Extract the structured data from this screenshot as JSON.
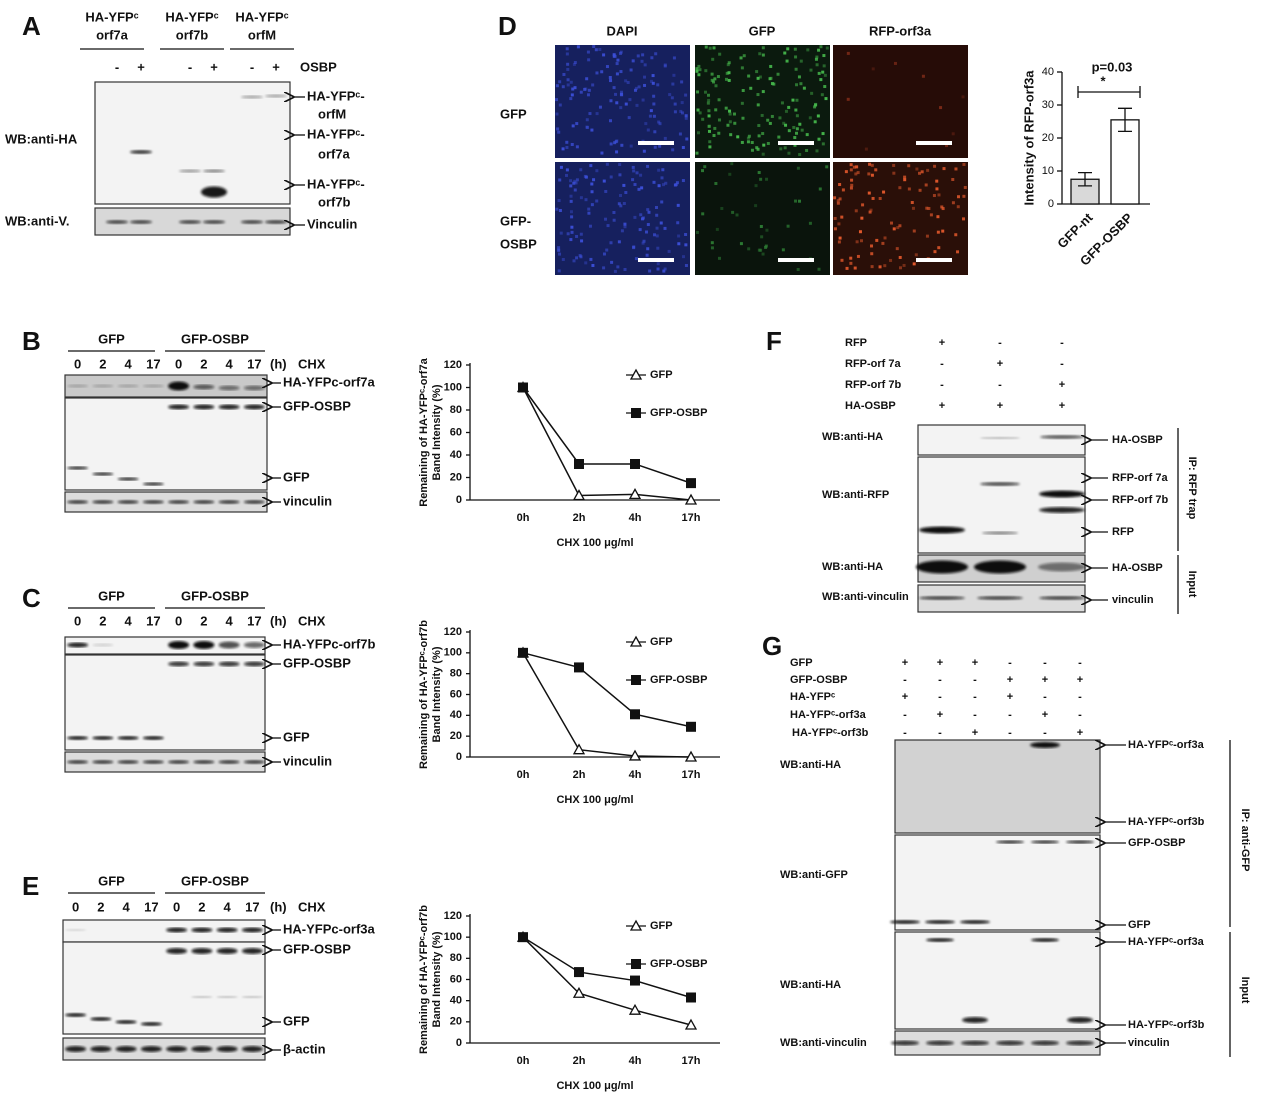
{
  "panels": {
    "A": {
      "letter": "A",
      "lane_groups": [
        [
          "HA-YFPᶜ",
          "orf7a"
        ],
        [
          "HA-YFPᶜ",
          "orf7b"
        ],
        [
          "HA-YFPᶜ",
          "orfM"
        ]
      ],
      "signs": [
        "-",
        "+",
        "-",
        "+",
        "-",
        "+"
      ],
      "treatment": "OSBP",
      "wb": [
        "WB:anti-HA",
        "WB:anti-V."
      ],
      "bands": [
        [
          "HA-YFPᶜ-",
          "orfM"
        ],
        [
          "HA-YFPᶜ-",
          "orf7a"
        ],
        [
          "HA-YFPᶜ-",
          "orf7b"
        ],
        [
          "Vinculin"
        ]
      ]
    },
    "B": {
      "letter": "B",
      "groups": [
        "GFP",
        "GFP-OSBP"
      ],
      "times": [
        "0",
        "2",
        "4",
        "17",
        "0",
        "2",
        "4",
        "17"
      ],
      "unit": "(h)",
      "treatment": "CHX",
      "bands": [
        "HA-YFPc-orf7a",
        "GFP-OSBP",
        "GFP",
        "vinculin"
      ]
    },
    "C": {
      "letter": "C",
      "groups": [
        "GFP",
        "GFP-OSBP"
      ],
      "times": [
        "0",
        "2",
        "4",
        "17",
        "0",
        "2",
        "4",
        "17"
      ],
      "unit": "(h)",
      "treatment": "CHX",
      "bands": [
        "HA-YFPc-orf7b",
        "GFP-OSBP",
        "GFP",
        "vinculin"
      ]
    },
    "D": {
      "letter": "D",
      "columns": [
        "DAPI",
        "GFP",
        "RFP-orf3a"
      ],
      "rows": [
        [
          "GFP"
        ],
        [
          "GFP-",
          "OSBP"
        ]
      ]
    },
    "E": {
      "letter": "E",
      "groups": [
        "GFP",
        "GFP-OSBP"
      ],
      "times": [
        "0",
        "2",
        "4",
        "17",
        "0",
        "2",
        "4",
        "17"
      ],
      "unit": "(h)",
      "treatment": "CHX",
      "bands": [
        "HA-YFPc-orf3a",
        "GFP-OSBP",
        "GFP",
        "β-actin"
      ]
    },
    "F": {
      "letter": "F",
      "rows": [
        "RFP",
        "RFP-orf 7a",
        "RFP-orf 7b",
        "HA-OSBP"
      ],
      "signs": [
        [
          "+",
          "-",
          "-"
        ],
        [
          "-",
          "+",
          "-"
        ],
        [
          "-",
          "-",
          "+"
        ],
        [
          "+",
          "+",
          "+"
        ]
      ],
      "wb": [
        "WB:anti-HA",
        "WB:anti-RFP",
        "WB:anti-HA",
        "WB:anti-vinculin"
      ],
      "bands": [
        "HA-OSBP",
        "RFP-orf 7a",
        "RFP-orf 7b",
        "RFP",
        "HA-OSBP",
        "vinculin"
      ],
      "brackets": [
        "IP: RFP trap",
        "Input"
      ]
    },
    "G": {
      "letter": "G",
      "rows": [
        "GFP",
        "GFP-OSBP",
        "HA-YFPᶜ",
        "HA-YFPᶜ-orf3a",
        "HA-YFPᶜ-orf3b"
      ],
      "signs": [
        [
          "+",
          "+",
          "+",
          "-",
          "-",
          "-"
        ],
        [
          "-",
          "-",
          "-",
          "+",
          "+",
          "+"
        ],
        [
          "+",
          "-",
          "-",
          "+",
          "-",
          "-"
        ],
        [
          "-",
          "+",
          "-",
          "-",
          "+",
          "-"
        ],
        [
          "-",
          "-",
          "+",
          "-",
          "-",
          "+"
        ]
      ],
      "wb": [
        "WB:anti-HA",
        "WB:anti-GFP",
        "WB:anti-HA",
        "WB:anti-vinculin"
      ],
      "bands": [
        "HA-YFPᶜ-orf3a",
        "HA-YFPᶜ-orf3b",
        "GFP-OSBP",
        "GFP",
        "HA-YFPᶜ-orf3a",
        "HA-YFPᶜ-orf3b",
        "vinculin"
      ],
      "brackets": [
        "IP: anti-GFP",
        "Input"
      ]
    }
  },
  "chart_data": [
    {
      "type": "bar",
      "categories": [
        "GFP-nt",
        "GFP-OSBP"
      ],
      "values": [
        7.5,
        25.5
      ],
      "errors": [
        2,
        3.5
      ],
      "colors": [
        "#d9d9d9",
        "#ffffff"
      ],
      "ylabel": "Intensity of RFP-orf3a",
      "ylim": [
        0,
        40
      ],
      "yticks": [
        0,
        10,
        20,
        30,
        40
      ],
      "annotation": "p=0.03",
      "significance": "*"
    },
    {
      "type": "line",
      "categories": [
        "0h",
        "2h",
        "4h",
        "17h"
      ],
      "series": [
        {
          "name": "GFP",
          "color": "#111111",
          "marker": "open-triangle",
          "values": [
            100,
            4,
            5,
            0
          ]
        },
        {
          "name": "GFP-OSBP",
          "color": "#111111",
          "marker": "filled-square",
          "values": [
            100,
            32,
            32,
            15
          ]
        }
      ],
      "ylabel": [
        "Remaining of HA-YFPᶜ-orf7a",
        "Band Intensity (%)"
      ],
      "xlabel": "CHX 100 μg/ml",
      "ylim": [
        0,
        120
      ],
      "yticks": [
        0,
        20,
        40,
        60,
        80,
        100,
        120
      ]
    },
    {
      "type": "line",
      "categories": [
        "0h",
        "2h",
        "4h",
        "17h"
      ],
      "series": [
        {
          "name": "GFP",
          "color": "#111111",
          "marker": "open-triangle",
          "values": [
            100,
            7,
            1,
            0
          ]
        },
        {
          "name": "GFP-OSBP",
          "color": "#111111",
          "marker": "filled-square",
          "values": [
            100,
            86,
            41,
            29
          ]
        }
      ],
      "ylabel": [
        "Remaining of HA-YFPᶜ-orf7b",
        "Band Intensity (%)"
      ],
      "xlabel": "CHX 100 μg/ml",
      "ylim": [
        0,
        120
      ],
      "yticks": [
        0,
        20,
        40,
        60,
        80,
        100,
        120
      ]
    },
    {
      "type": "line",
      "categories": [
        "0h",
        "2h",
        "4h",
        "17h"
      ],
      "series": [
        {
          "name": "GFP",
          "color": "#111111",
          "marker": "open-triangle",
          "values": [
            100,
            47,
            31,
            17
          ]
        },
        {
          "name": "GFP-OSBP",
          "color": "#111111",
          "marker": "filled-square",
          "values": [
            100,
            67,
            59,
            43
          ]
        }
      ],
      "ylabel": [
        "Remaining of HA-YFPᶜ-orf7b",
        "Band Intensity (%)"
      ],
      "xlabel": "CHX 100 μg/ml",
      "ylim": [
        0,
        120
      ],
      "yticks": [
        0,
        20,
        40,
        60,
        80,
        100,
        120
      ]
    }
  ]
}
